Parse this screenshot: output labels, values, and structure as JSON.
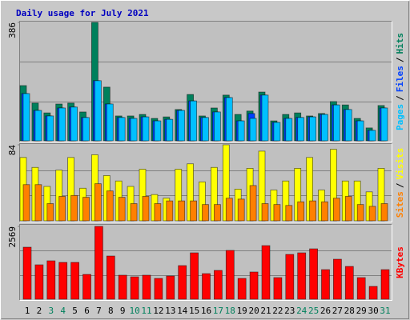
{
  "chart_data": {
    "type": "bar",
    "title": "Daily usage for July 2021",
    "categories": [
      "1",
      "2",
      "3",
      "4",
      "5",
      "6",
      "7",
      "8",
      "9",
      "10",
      "11",
      "12",
      "13",
      "14",
      "15",
      "16",
      "17",
      "18",
      "19",
      "20",
      "21",
      "22",
      "23",
      "24",
      "25",
      "26",
      "27",
      "28",
      "29",
      "30",
      "31"
    ],
    "category_colors": [
      "#000000",
      "#000000",
      "#00805c",
      "#00805c",
      "#000000",
      "#000000",
      "#000000",
      "#000000",
      "#000000",
      "#00805c",
      "#00805c",
      "#000000",
      "#000000",
      "#000000",
      "#000000",
      "#000000",
      "#00805c",
      "#00805c",
      "#000000",
      "#000000",
      "#000000",
      "#000000",
      "#000000",
      "#00805c",
      "#00805c",
      "#000000",
      "#000000",
      "#000000",
      "#000000",
      "#000000",
      "#00805c"
    ],
    "legend_separator": "/",
    "panels": [
      {
        "ylim": [
          0,
          386
        ],
        "yticks": [
          386
        ],
        "series": [
          {
            "name": "Hits",
            "color": "#00805c",
            "values": [
              180,
              123,
              91,
              120,
              123,
              94,
              386,
              175,
              81,
              81,
              86,
              73,
              78,
              102,
              151,
              81,
              107,
              149,
              86,
              97,
              159,
              65,
              86,
              91,
              81,
              89,
              128,
              117,
              73,
              42,
              115
            ]
          },
          {
            "name": "Files",
            "color": "#0040ff",
            "values": [
              154,
              99,
              81,
              107,
              110,
              76,
              196,
              120,
              76,
              73,
              78,
              65,
              70,
              99,
              130,
              76,
              94,
              141,
              65,
              89,
              149,
              60,
              73,
              76,
              78,
              86,
              117,
              102,
              65,
              34,
              107
            ]
          },
          {
            "name": "Pages",
            "color": "#00c0ff",
            "values": [
              154,
              99,
              81,
              107,
              110,
              76,
              196,
              120,
              76,
              73,
              78,
              65,
              70,
              99,
              130,
              76,
              94,
              141,
              65,
              73,
              149,
              60,
              73,
              76,
              78,
              86,
              117,
              102,
              65,
              34,
              107
            ]
          }
        ]
      },
      {
        "ylim": [
          0,
          84
        ],
        "yticks": [
          84
        ],
        "series": [
          {
            "name": "Visits",
            "color": "#ffff00",
            "values": [
              70,
              59,
              38,
              56,
              70,
              36,
              73,
              50,
              44,
              38,
              57,
              29,
              25,
              57,
              63,
              43,
              59,
              84,
              35,
              58,
              77,
              34,
              44,
              58,
              70,
              34,
              79,
              44,
              44,
              32,
              58
            ]
          },
          {
            "name": "Sites",
            "color": "#ff8000",
            "values": [
              40,
              40,
              19,
              27,
              28,
              26,
              41,
              33,
              26,
              19,
              27,
              19,
              22,
              22,
              22,
              18,
              18,
              25,
              24,
              39,
              19,
              18,
              17,
              21,
              22,
              21,
              25,
              27,
              18,
              16,
              19
            ]
          }
        ]
      },
      {
        "ylim": [
          0,
          2569
        ],
        "yticks": [
          2569
        ],
        "series": [
          {
            "name": "KBytes",
            "color": "#ff0000",
            "values": [
              1835,
              1214,
              1355,
              1299,
              1299,
              875,
              2569,
              1524,
              847,
              790,
              847,
              734,
              819,
              1186,
              1637,
              903,
              1016,
              1722,
              734,
              960,
              1891,
              762,
              1581,
              1637,
              1778,
              1044,
              1411,
              1157,
              762,
              452,
              1044
            ]
          }
        ]
      }
    ]
  }
}
